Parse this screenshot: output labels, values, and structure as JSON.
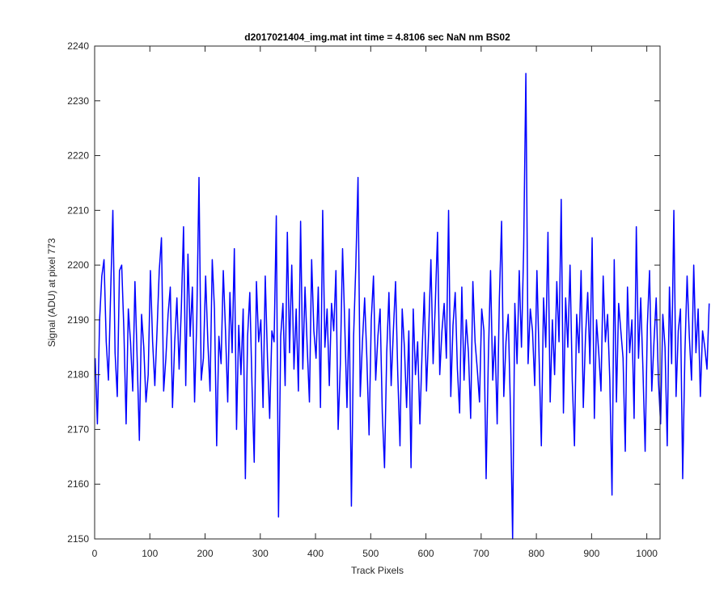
{
  "chart_data": {
    "type": "line",
    "title": "d2017021404_img.mat int time = 4.8106 sec  NaN nm BS02",
    "xlabel": "Track Pixels",
    "ylabel": "Signal (ADU) at pixel 773",
    "xlim": [
      0,
      1024
    ],
    "ylim": [
      2150,
      2240
    ],
    "xticks": [
      0,
      100,
      200,
      300,
      400,
      500,
      600,
      700,
      800,
      900,
      1000
    ],
    "yticks": [
      2150,
      2160,
      2170,
      2180,
      2190,
      2200,
      2210,
      2220,
      2230,
      2240
    ],
    "grid": false,
    "line_color": "#0000ff",
    "series": [
      {
        "x_start": 1,
        "x_step": 4,
        "values": [
          2183,
          2171,
          2190,
          2198,
          2201,
          2186,
          2179,
          2195,
          2210,
          2184,
          2176,
          2199,
          2200,
          2188,
          2171,
          2192,
          2186,
          2177,
          2197,
          2183,
          2168,
          2191,
          2185,
          2175,
          2180,
          2199,
          2186,
          2178,
          2188,
          2199,
          2205,
          2177,
          2183,
          2191,
          2196,
          2174,
          2186,
          2194,
          2181,
          2192,
          2207,
          2178,
          2202,
          2187,
          2196,
          2175,
          2190,
          2216,
          2179,
          2183,
          2198,
          2186,
          2177,
          2201,
          2192,
          2167,
          2187,
          2182,
          2199,
          2188,
          2175,
          2195,
          2184,
          2203,
          2170,
          2189,
          2180,
          2192,
          2161,
          2187,
          2195,
          2178,
          2164,
          2197,
          2186,
          2190,
          2174,
          2198,
          2183,
          2172,
          2188,
          2186,
          2209,
          2154,
          2187,
          2193,
          2178,
          2206,
          2184,
          2200,
          2181,
          2192,
          2177,
          2208,
          2181,
          2196,
          2185,
          2175,
          2201,
          2188,
          2183,
          2196,
          2174,
          2210,
          2185,
          2192,
          2178,
          2193,
          2188,
          2199,
          2170,
          2182,
          2203,
          2189,
          2174,
          2192,
          2156,
          2187,
          2200,
          2216,
          2176,
          2186,
          2194,
          2183,
          2169,
          2190,
          2198,
          2179,
          2187,
          2192,
          2173,
          2163,
          2184,
          2195,
          2178,
          2188,
          2197,
          2180,
          2167,
          2192,
          2185,
          2174,
          2188,
          2163,
          2192,
          2180,
          2186,
          2171,
          2184,
          2195,
          2177,
          2188,
          2201,
          2182,
          2193,
          2206,
          2180,
          2188,
          2193,
          2183,
          2210,
          2176,
          2189,
          2195,
          2181,
          2173,
          2196,
          2179,
          2190,
          2184,
          2172,
          2197,
          2186,
          2181,
          2175,
          2192,
          2188,
          2161,
          2183,
          2199,
          2179,
          2187,
          2171,
          2194,
          2208,
          2176,
          2186,
          2191,
          2174,
          2150,
          2193,
          2182,
          2199,
          2185,
          2203,
          2235,
          2182,
          2192,
          2188,
          2178,
          2199,
          2183,
          2167,
          2194,
          2185,
          2206,
          2175,
          2190,
          2180,
          2197,
          2186,
          2212,
          2173,
          2194,
          2185,
          2200,
          2179,
          2167,
          2191,
          2184,
          2199,
          2174,
          2187,
          2195,
          2182,
          2205,
          2172,
          2190,
          2184,
          2177,
          2198,
          2186,
          2191,
          2179,
          2158,
          2201,
          2175,
          2193,
          2188,
          2183,
          2166,
          2196,
          2184,
          2190,
          2172,
          2207,
          2183,
          2194,
          2181,
          2166,
          2189,
          2199,
          2177,
          2186,
          2194,
          2179,
          2171,
          2191,
          2185,
          2167,
          2196,
          2182,
          2210,
          2176,
          2188,
          2192,
          2161,
          2184,
          2198,
          2187,
          2179,
          2200,
          2184,
          2192,
          2176,
          2188,
          2185,
          2181,
          2193
        ]
      }
    ]
  }
}
